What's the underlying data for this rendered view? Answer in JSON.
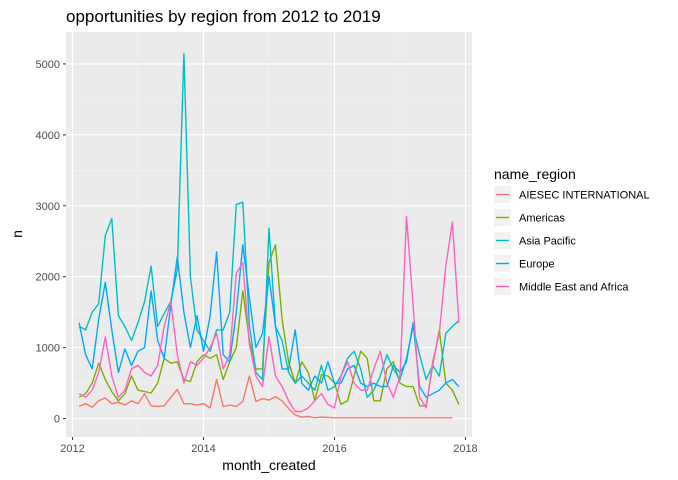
{
  "chart_data": {
    "type": "line",
    "title": "opportunities by region from 2012 to 2019",
    "xlabel": "month_created",
    "ylabel": "n",
    "xlim": [
      2011.9,
      2018.1
    ],
    "ylim": [
      -260,
      5450
    ],
    "x_ticks": [
      2012,
      2014,
      2016,
      2018
    ],
    "x_tick_labels": [
      "2012",
      "2014",
      "2016",
      "2018"
    ],
    "y_ticks": [
      0,
      1000,
      2000,
      3000,
      4000,
      5000
    ],
    "y_tick_labels": [
      "0",
      "1000",
      "2000",
      "3000",
      "4000",
      "5000"
    ],
    "grid": true,
    "legend_title": "name_region",
    "legend_position": "right",
    "series": [
      {
        "name": "AIESEC INTERNATIONAL",
        "color": "#F8766D",
        "x": [
          2012.1,
          2012.2,
          2012.3,
          2012.4,
          2012.5,
          2012.6,
          2012.7,
          2012.8,
          2012.9,
          2013.0,
          2013.1,
          2013.2,
          2013.3,
          2013.4,
          2013.5,
          2013.6,
          2013.7,
          2013.8,
          2013.9,
          2014.0,
          2014.1,
          2014.2,
          2014.3,
          2014.4,
          2014.5,
          2014.6,
          2014.7,
          2014.8,
          2014.9,
          2015.0,
          2015.1,
          2015.2,
          2015.3,
          2015.4,
          2015.5,
          2015.6,
          2015.7,
          2015.8,
          2016.0,
          2016.3,
          2016.6,
          2016.9,
          2017.2,
          2017.5,
          2017.8
        ],
        "y": [
          170,
          210,
          160,
          250,
          290,
          210,
          230,
          190,
          250,
          210,
          350,
          180,
          170,
          180,
          300,
          410,
          210,
          210,
          190,
          210,
          150,
          550,
          170,
          190,
          170,
          240,
          600,
          240,
          280,
          260,
          310,
          250,
          140,
          50,
          20,
          30,
          10,
          20,
          10,
          10,
          10,
          10,
          10,
          10,
          10
        ]
      },
      {
        "name": "Americas",
        "color": "#7CAE00",
        "x": [
          2012.1,
          2012.2,
          2012.3,
          2012.4,
          2012.5,
          2012.6,
          2012.7,
          2012.8,
          2012.9,
          2013.0,
          2013.1,
          2013.2,
          2013.3,
          2013.4,
          2013.5,
          2013.6,
          2013.7,
          2013.8,
          2013.9,
          2014.0,
          2014.1,
          2014.2,
          2014.3,
          2014.4,
          2014.5,
          2014.6,
          2014.7,
          2014.8,
          2014.9,
          2015.0,
          2015.1,
          2015.2,
          2015.3,
          2015.4,
          2015.5,
          2015.6,
          2015.7,
          2015.8,
          2015.9,
          2016.0,
          2016.1,
          2016.2,
          2016.3,
          2016.4,
          2016.5,
          2016.6,
          2016.7,
          2016.8,
          2016.9,
          2017.0,
          2017.1,
          2017.2,
          2017.3,
          2017.4,
          2017.5,
          2017.6,
          2017.7,
          2017.8,
          2017.9
        ],
        "y": [
          300,
          350,
          500,
          780,
          550,
          380,
          250,
          350,
          600,
          400,
          380,
          360,
          500,
          850,
          780,
          800,
          550,
          520,
          800,
          900,
          850,
          900,
          550,
          800,
          1000,
          1800,
          1100,
          700,
          700,
          2200,
          2450,
          1400,
          800,
          500,
          800,
          650,
          250,
          620,
          600,
          500,
          200,
          250,
          600,
          950,
          850,
          250,
          250,
          700,
          800,
          500,
          450,
          450,
          180,
          180,
          750,
          1250,
          500,
          400,
          200
        ]
      },
      {
        "name": "Asia Pacific",
        "color": "#00BFC4",
        "x": [
          2012.1,
          2012.2,
          2012.3,
          2012.4,
          2012.5,
          2012.6,
          2012.7,
          2012.8,
          2012.9,
          2013.0,
          2013.1,
          2013.2,
          2013.3,
          2013.4,
          2013.5,
          2013.6,
          2013.7,
          2013.8,
          2013.9,
          2014.0,
          2014.1,
          2014.2,
          2014.3,
          2014.4,
          2014.5,
          2014.6,
          2014.7,
          2014.8,
          2014.9,
          2015.0,
          2015.1,
          2015.2,
          2015.3,
          2015.4,
          2015.5,
          2015.6,
          2015.7,
          2015.8,
          2015.9,
          2016.0,
          2016.1,
          2016.2,
          2016.3,
          2016.4,
          2016.5,
          2016.6,
          2016.7,
          2016.8,
          2016.9,
          2017.0,
          2017.1,
          2017.2,
          2017.3,
          2017.4,
          2017.5,
          2017.6,
          2017.7,
          2017.8,
          2017.9
        ],
        "y": [
          1300,
          1250,
          1500,
          1620,
          2580,
          2820,
          1450,
          1300,
          1100,
          1350,
          1650,
          2150,
          1300,
          1480,
          1650,
          2100,
          5150,
          2000,
          1250,
          1100,
          950,
          1250,
          1250,
          1500,
          3020,
          3050,
          1320,
          650,
          550,
          2680,
          1300,
          1100,
          650,
          500,
          600,
          500,
          400,
          750,
          400,
          450,
          600,
          850,
          950,
          700,
          300,
          400,
          600,
          900,
          700,
          550,
          850,
          1300,
          900,
          550,
          750,
          600,
          1200,
          1300,
          1380
        ]
      },
      {
        "name": "Europe",
        "color": "#00A9FF",
        "x": [
          2012.1,
          2012.2,
          2012.3,
          2012.4,
          2012.5,
          2012.6,
          2012.7,
          2012.8,
          2012.9,
          2013.0,
          2013.1,
          2013.2,
          2013.3,
          2013.4,
          2013.5,
          2013.6,
          2013.7,
          2013.8,
          2013.9,
          2014.0,
          2014.1,
          2014.2,
          2014.3,
          2014.4,
          2014.5,
          2014.6,
          2014.7,
          2014.8,
          2014.9,
          2015.0,
          2015.1,
          2015.2,
          2015.3,
          2015.4,
          2015.5,
          2015.6,
          2015.7,
          2015.8,
          2015.9,
          2016.0,
          2016.1,
          2016.2,
          2016.3,
          2016.4,
          2016.5,
          2016.6,
          2016.7,
          2016.8,
          2016.9,
          2017.0,
          2017.1,
          2017.2,
          2017.3,
          2017.4,
          2017.5,
          2017.6,
          2017.7,
          2017.8,
          2017.9
        ],
        "y": [
          1350,
          900,
          700,
          1400,
          1920,
          1250,
          650,
          980,
          750,
          950,
          1000,
          1800,
          1100,
          850,
          1600,
          2280,
          1500,
          1000,
          1450,
          950,
          1450,
          2350,
          900,
          800,
          1500,
          2450,
          1700,
          1000,
          1200,
          2000,
          1300,
          700,
          700,
          1250,
          500,
          400,
          600,
          500,
          800,
          500,
          500,
          700,
          750,
          500,
          450,
          500,
          450,
          450,
          750,
          650,
          800,
          1350,
          450,
          300,
          350,
          400,
          500,
          550,
          450
        ]
      },
      {
        "name": "Middle East and Africa",
        "color": "#FF61C3",
        "x": [
          2012.1,
          2012.2,
          2012.3,
          2012.4,
          2012.5,
          2012.6,
          2012.7,
          2012.8,
          2012.9,
          2013.0,
          2013.1,
          2013.2,
          2013.3,
          2013.4,
          2013.5,
          2013.6,
          2013.7,
          2013.8,
          2013.9,
          2014.0,
          2014.1,
          2014.2,
          2014.3,
          2014.4,
          2014.5,
          2014.6,
          2014.7,
          2014.8,
          2014.9,
          2015.0,
          2015.1,
          2015.2,
          2015.3,
          2015.4,
          2015.5,
          2015.6,
          2015.7,
          2015.8,
          2015.9,
          2016.0,
          2016.1,
          2016.2,
          2016.3,
          2016.4,
          2016.5,
          2016.6,
          2016.7,
          2016.8,
          2016.9,
          2017.0,
          2017.1,
          2017.2,
          2017.3,
          2017.4,
          2017.5,
          2017.6,
          2017.7,
          2017.8,
          2017.9
        ],
        "y": [
          350,
          300,
          400,
          650,
          1150,
          600,
          300,
          400,
          700,
          750,
          650,
          600,
          750,
          1300,
          1650,
          900,
          500,
          800,
          750,
          850,
          1000,
          1200,
          700,
          900,
          2050,
          2200,
          1050,
          600,
          450,
          1150,
          600,
          450,
          250,
          100,
          100,
          150,
          250,
          350,
          200,
          150,
          600,
          800,
          500,
          400,
          400,
          700,
          950,
          500,
          300,
          600,
          2850,
          1600,
          300,
          150,
          800,
          1200,
          2150,
          2770,
          1350
        ]
      }
    ]
  }
}
